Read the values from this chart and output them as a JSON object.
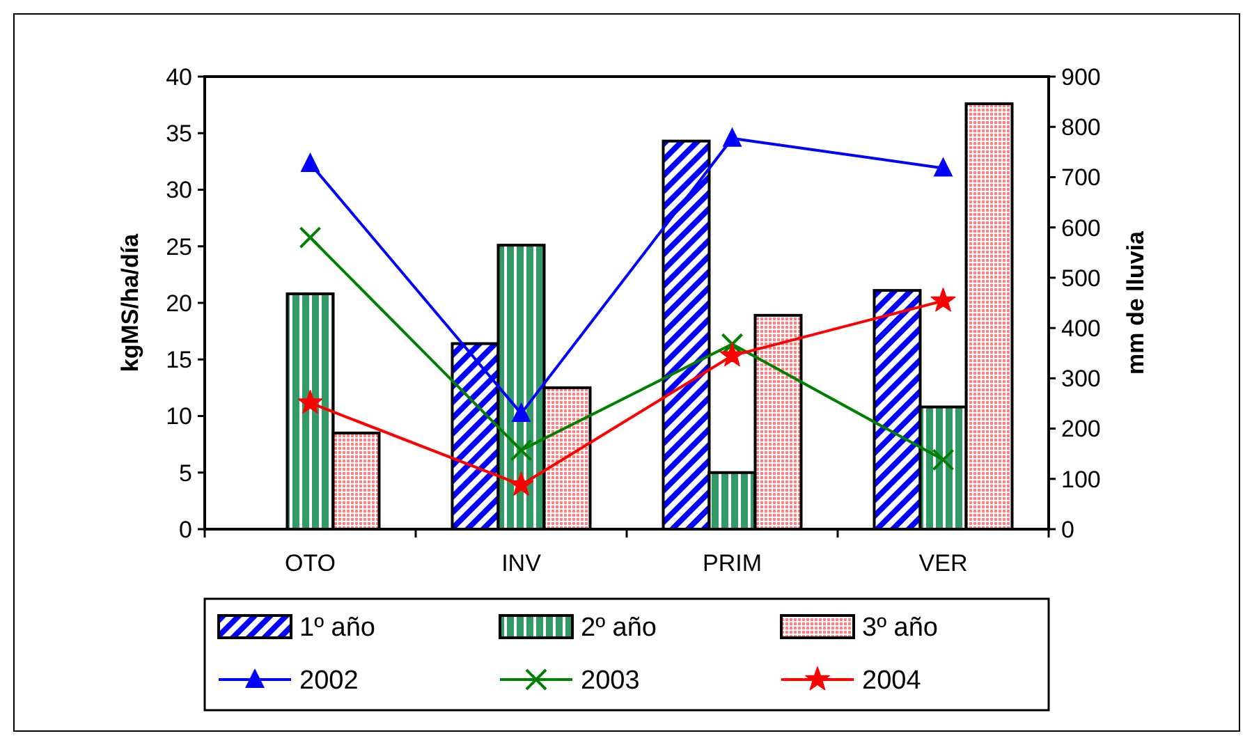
{
  "chart_data": {
    "type": "bar",
    "ylabel": "kgMS/ha/día",
    "y2label": "mm de lluvia",
    "categories": [
      "OTO",
      "INV",
      "PRIM",
      "VER"
    ],
    "series": [
      {
        "name": "1º año",
        "color": "#0000ff",
        "values": [
          null,
          16.4,
          34.3,
          21.1
        ]
      },
      {
        "name": "2º año",
        "color": "#339966",
        "values": [
          20.8,
          25.1,
          5.0,
          10.8
        ]
      },
      {
        "name": "3º año",
        "color": "#ff8080",
        "values": [
          8.5,
          12.5,
          18.9,
          37.6
        ]
      },
      {
        "name": "2002",
        "type": "line",
        "axis": "y2",
        "marker": "triangle",
        "color": "#0000ff",
        "values": [
          727,
          230,
          777,
          718
        ]
      },
      {
        "name": "2003",
        "type": "line",
        "axis": "y2",
        "marker": "cross",
        "color": "#008000",
        "values": [
          580,
          157,
          368,
          138
        ]
      },
      {
        "name": "2004",
        "type": "line",
        "axis": "y2",
        "marker": "star",
        "color": "#ff0000",
        "values": [
          251,
          88,
          345,
          454
        ]
      }
    ],
    "ylim": [
      0,
      40
    ],
    "yticks": [
      0,
      5,
      10,
      15,
      20,
      25,
      30,
      35,
      40
    ],
    "y2lim": [
      0,
      900
    ],
    "y2ticks": [
      0,
      100,
      200,
      300,
      400,
      500,
      600,
      700,
      800,
      900
    ],
    "grid": false,
    "legend": "bottom"
  }
}
